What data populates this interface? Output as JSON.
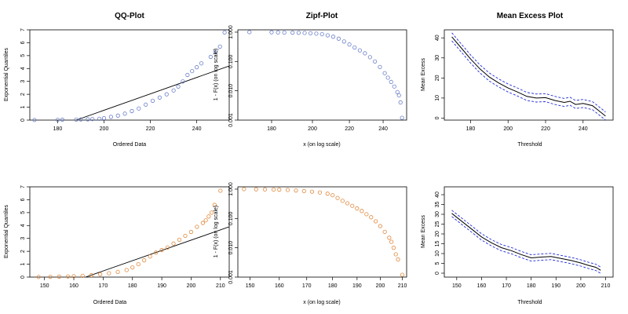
{
  "chart_data": [
    {
      "type": "scatter",
      "title": "QQ-Plot",
      "xlabel": "Ordered Data",
      "ylabel": "Exponential Quantiles",
      "xlim": [
        168,
        254
      ],
      "ylim": [
        0,
        7
      ],
      "xticks": [
        180,
        200,
        220,
        240
      ],
      "yticks": [
        0,
        1,
        2,
        3,
        4,
        5,
        6,
        7
      ],
      "marker_color": "#6b7fc9",
      "points": [
        [
          170,
          0.01
        ],
        [
          180,
          0.02
        ],
        [
          182,
          0.03
        ],
        [
          188,
          0.04
        ],
        [
          190,
          0.05
        ],
        [
          193,
          0.06
        ],
        [
          195,
          0.08
        ],
        [
          198,
          0.1
        ],
        [
          200,
          0.15
        ],
        [
          203,
          0.25
        ],
        [
          206,
          0.35
        ],
        [
          209,
          0.5
        ],
        [
          212,
          0.7
        ],
        [
          215,
          0.9
        ],
        [
          218,
          1.2
        ],
        [
          221,
          1.5
        ],
        [
          224,
          1.75
        ],
        [
          227,
          2.0
        ],
        [
          230,
          2.3
        ],
        [
          232,
          2.6
        ],
        [
          234,
          3.0
        ],
        [
          236,
          3.5
        ],
        [
          238,
          3.8
        ],
        [
          240,
          4.1
        ],
        [
          242,
          4.4
        ],
        [
          246,
          4.9
        ],
        [
          248,
          5.3
        ],
        [
          250,
          5.7
        ],
        [
          252,
          6.8
        ]
      ],
      "fit_line": [
        [
          188,
          0.0
        ],
        [
          254,
          4.2
        ]
      ]
    },
    {
      "type": "scatter",
      "title": "Zipf-Plot",
      "xlabel": "x (on log scale)",
      "ylabel": "1 - F(x)  (on log scale)",
      "xscale": "log",
      "yscale": "log",
      "xlim": [
        165,
        255
      ],
      "ylim": [
        0.001,
        1.2
      ],
      "xticks": [
        180,
        200,
        220,
        240
      ],
      "yticks": [
        0.001,
        0.01,
        0.1,
        1
      ],
      "ytick_labels": [
        "0.001",
        "0.010",
        "0.100",
        "1.000"
      ],
      "marker_color": "#6b7fc9",
      "points": [
        [
          170,
          1.0
        ],
        [
          180,
          0.99
        ],
        [
          183,
          0.98
        ],
        [
          186,
          0.97
        ],
        [
          190,
          0.96
        ],
        [
          193,
          0.95
        ],
        [
          196,
          0.94
        ],
        [
          199,
          0.92
        ],
        [
          202,
          0.89
        ],
        [
          205,
          0.85
        ],
        [
          208,
          0.78
        ],
        [
          211,
          0.7
        ],
        [
          214,
          0.6
        ],
        [
          217,
          0.48
        ],
        [
          220,
          0.38
        ],
        [
          223,
          0.3
        ],
        [
          226,
          0.24
        ],
        [
          229,
          0.19
        ],
        [
          232,
          0.14
        ],
        [
          235,
          0.1
        ],
        [
          238,
          0.065
        ],
        [
          241,
          0.04
        ],
        [
          243,
          0.028
        ],
        [
          245,
          0.02
        ],
        [
          247,
          0.014
        ],
        [
          249,
          0.009
        ],
        [
          250,
          0.007
        ],
        [
          251,
          0.004
        ],
        [
          252,
          0.0012
        ]
      ]
    },
    {
      "type": "line",
      "title": "Mean Excess Plot",
      "xlabel": "Threshold",
      "ylabel": "Mean Excess",
      "xlim": [
        166,
        256
      ],
      "ylim": [
        -1,
        44
      ],
      "xticks": [
        180,
        200,
        220,
        240
      ],
      "yticks": [
        0,
        10,
        20,
        30,
        40
      ],
      "line_color": "#000000",
      "band_color": "#1f2bd8",
      "series": [
        {
          "x": [
            170,
            175,
            180,
            185,
            190,
            195,
            200,
            205,
            210,
            215,
            220,
            225,
            230,
            233,
            236,
            240,
            245,
            250,
            252
          ],
          "values": [
            40.5,
            35.0,
            29.5,
            24.5,
            20.5,
            17.5,
            15.0,
            13.0,
            10.8,
            10.0,
            10.2,
            8.8,
            7.8,
            8.4,
            6.8,
            7.3,
            6.2,
            2.5,
            1.0
          ]
        }
      ],
      "band_offset": 2.0
    },
    {
      "type": "scatter",
      "title": "",
      "xlabel": "Ordered Data",
      "ylabel": "Exponential Quantiles",
      "xlim": [
        145,
        213
      ],
      "ylim": [
        0,
        7
      ],
      "xticks": [
        150,
        160,
        170,
        180,
        190,
        200,
        210
      ],
      "yticks": [
        0,
        1,
        2,
        3,
        4,
        5,
        6,
        7
      ],
      "marker_color": "#e0873a",
      "points": [
        [
          148,
          0.01
        ],
        [
          152,
          0.02
        ],
        [
          155,
          0.03
        ],
        [
          158,
          0.05
        ],
        [
          160,
          0.07
        ],
        [
          163,
          0.1
        ],
        [
          166,
          0.15
        ],
        [
          169,
          0.22
        ],
        [
          172,
          0.3
        ],
        [
          175,
          0.4
        ],
        [
          178,
          0.55
        ],
        [
          180,
          0.75
        ],
        [
          182,
          1.0
        ],
        [
          184,
          1.3
        ],
        [
          186,
          1.6
        ],
        [
          188,
          1.9
        ],
        [
          190,
          2.1
        ],
        [
          192,
          2.3
        ],
        [
          194,
          2.6
        ],
        [
          196,
          2.9
        ],
        [
          198,
          3.2
        ],
        [
          200,
          3.5
        ],
        [
          202,
          3.9
        ],
        [
          204,
          4.2
        ],
        [
          205,
          4.4
        ],
        [
          206,
          4.7
        ],
        [
          207,
          5.0
        ],
        [
          208,
          5.6
        ],
        [
          210,
          6.7
        ]
      ],
      "fit_line": [
        [
          164,
          0.0
        ],
        [
          213,
          3.9
        ]
      ]
    },
    {
      "type": "scatter",
      "title": "",
      "xlabel": "x (on log scale)",
      "ylabel": "1 - F(x)  (on log scale)",
      "xscale": "log",
      "yscale": "log",
      "xlim": [
        146,
        212
      ],
      "ylim": [
        0.001,
        1.2
      ],
      "xticks": [
        150,
        160,
        170,
        180,
        190,
        200,
        210
      ],
      "yticks": [
        0.001,
        0.01,
        0.1,
        1
      ],
      "ytick_labels": [
        "0.001",
        "0.010",
        "0.100",
        "1.000"
      ],
      "marker_color": "#e0873a",
      "points": [
        [
          148,
          1.0
        ],
        [
          152,
          0.99
        ],
        [
          155,
          0.98
        ],
        [
          158,
          0.97
        ],
        [
          160,
          0.96
        ],
        [
          163,
          0.94
        ],
        [
          166,
          0.9
        ],
        [
          169,
          0.86
        ],
        [
          172,
          0.82
        ],
        [
          175,
          0.77
        ],
        [
          178,
          0.7
        ],
        [
          180,
          0.62
        ],
        [
          182,
          0.5
        ],
        [
          184,
          0.4
        ],
        [
          186,
          0.33
        ],
        [
          188,
          0.27
        ],
        [
          190,
          0.22
        ],
        [
          192,
          0.18
        ],
        [
          194,
          0.14
        ],
        [
          196,
          0.11
        ],
        [
          198,
          0.08
        ],
        [
          200,
          0.055
        ],
        [
          202,
          0.035
        ],
        [
          204,
          0.022
        ],
        [
          205,
          0.016
        ],
        [
          206,
          0.01
        ],
        [
          207,
          0.006
        ],
        [
          208,
          0.004
        ],
        [
          210,
          0.0012
        ]
      ]
    },
    {
      "type": "line",
      "title": "",
      "xlabel": "Threshold",
      "ylabel": "Mean Excess",
      "xlim": [
        145,
        213
      ],
      "ylim": [
        -2,
        44
      ],
      "xticks": [
        150,
        160,
        170,
        180,
        190,
        200,
        210
      ],
      "yticks": [
        0,
        5,
        10,
        15,
        20,
        25,
        30,
        35,
        40
      ],
      "line_color": "#000000",
      "band_color": "#1f2bd8",
      "series": [
        {
          "x": [
            148,
            152,
            156,
            160,
            164,
            168,
            172,
            176,
            180,
            184,
            188,
            192,
            196,
            200,
            203,
            206,
            208
          ],
          "values": [
            30.5,
            26.5,
            22.5,
            18.5,
            15.5,
            13.0,
            11.5,
            9.5,
            7.8,
            8.2,
            8.5,
            7.5,
            6.5,
            5.2,
            4.0,
            3.0,
            1.5
          ]
        }
      ],
      "band_offset": 1.6
    }
  ]
}
